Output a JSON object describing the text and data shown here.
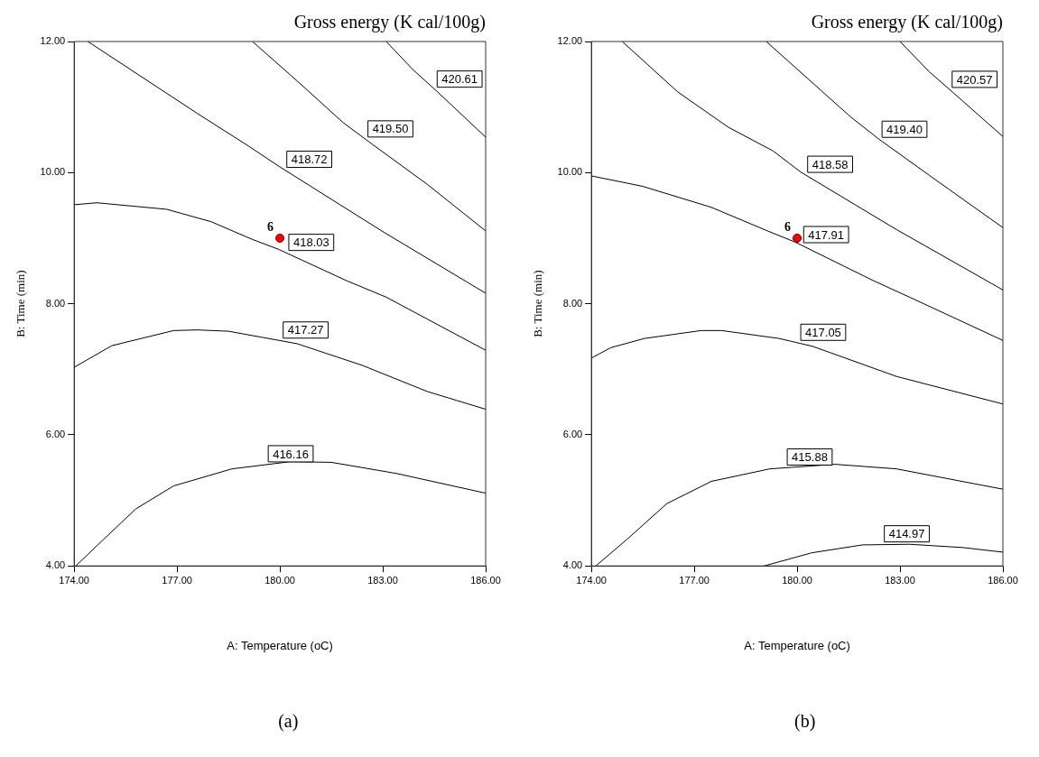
{
  "chart_data": [
    {
      "type": "line",
      "title": "Gross energy (K cal/100g)",
      "xlabel": "A: Temperature (oC)",
      "ylabel": "B: Time (min)",
      "xlim": [
        174,
        186
      ],
      "ylim": [
        4,
        12
      ],
      "xticks": [
        {
          "value": 174,
          "label": "174.00"
        },
        {
          "value": 177,
          "label": "177.00"
        },
        {
          "value": 180,
          "label": "180.00"
        },
        {
          "value": 183,
          "label": "183.00"
        },
        {
          "value": 186,
          "label": "186.00"
        }
      ],
      "yticks": [
        {
          "value": 4,
          "label": "4.00"
        },
        {
          "value": 6,
          "label": "6.00"
        },
        {
          "value": 8,
          "label": "8.00"
        },
        {
          "value": 10,
          "label": "10.00"
        },
        {
          "value": 12,
          "label": "12.00"
        }
      ],
      "series": [
        {
          "name": "420.61",
          "color": "#000000",
          "x": [
            183.1,
            183.9,
            184.6,
            186
          ],
          "values": [
            12,
            11.56,
            11.23,
            10.54
          ]
        },
        {
          "name": "419.50",
          "color": "#000000",
          "x": [
            179.2,
            180.5,
            181.85,
            182.7,
            184.3,
            186
          ],
          "values": [
            12,
            11.4,
            10.76,
            10.43,
            9.82,
            9.11
          ]
        },
        {
          "name": "418.72",
          "color": "#000000",
          "x": [
            174.4,
            176,
            177.6,
            179.1,
            179.96,
            183,
            186
          ],
          "values": [
            12,
            11.45,
            10.9,
            10.4,
            10.1,
            9.1,
            8.16
          ]
        },
        {
          "name": "418.03",
          "color": "#000000",
          "x": [
            174,
            174.66,
            176.7,
            178,
            179.2,
            179.96,
            181.95,
            183.1,
            186
          ],
          "values": [
            9.51,
            9.54,
            9.44,
            9.25,
            8.98,
            8.83,
            8.35,
            8.1,
            7.29
          ]
        },
        {
          "name": "417.27",
          "color": "#000000",
          "x": [
            174,
            175.1,
            176.9,
            177.6,
            178.5,
            180.5,
            182.4,
            184.3,
            186
          ],
          "values": [
            7.03,
            7.36,
            7.59,
            7.6,
            7.58,
            7.39,
            7.06,
            6.66,
            6.39
          ]
        },
        {
          "name": "416.16",
          "color": "#000000",
          "x": [
            174.05,
            174.85,
            175.8,
            176.9,
            178.6,
            180.3,
            181.5,
            183.4,
            186
          ],
          "values": [
            4,
            4.4,
            4.87,
            5.22,
            5.48,
            5.59,
            5.58,
            5.41,
            5.11
          ]
        },
        {
          "type": "scatter",
          "color": "#ff0000",
          "marker": "circle",
          "x": [
            180
          ],
          "values": [
            9
          ]
        }
      ],
      "annotations": [
        {
          "text": "6",
          "x": 180,
          "y": 9
        },
        "(a)"
      ]
    },
    {
      "type": "line",
      "title": "Gross energy (K cal/100g)",
      "xlabel": "A: Temperature (oC)",
      "ylabel": "B: Time (min)",
      "xlim": [
        174,
        186
      ],
      "ylim": [
        4,
        12
      ],
      "xticks": [
        {
          "value": 174,
          "label": "174.00"
        },
        {
          "value": 177,
          "label": "177.00"
        },
        {
          "value": 180,
          "label": "180.00"
        },
        {
          "value": 183,
          "label": "183.00"
        },
        {
          "value": 186,
          "label": "186.00"
        }
      ],
      "yticks": [
        {
          "value": 4,
          "label": "4.00"
        },
        {
          "value": 6,
          "label": "6.00"
        },
        {
          "value": 8,
          "label": "8.00"
        },
        {
          "value": 10,
          "label": "10.00"
        },
        {
          "value": 12,
          "label": "12.00"
        }
      ],
      "series": [
        {
          "name": "420.57",
          "color": "#000000",
          "x": [
            183,
            183.85,
            184.55,
            186
          ],
          "values": [
            12,
            11.54,
            11.22,
            10.55
          ]
        },
        {
          "name": "419.40",
          "color": "#000000",
          "x": [
            179.1,
            181.56,
            182.36,
            183.85,
            186
          ],
          "values": [
            12,
            10.85,
            10.52,
            9.96,
            9.16
          ]
        },
        {
          "name": "418.58",
          "color": "#000000",
          "x": [
            174.9,
            176.52,
            178,
            179.3,
            180.1,
            182.9,
            186
          ],
          "values": [
            12,
            11.23,
            10.69,
            10.33,
            10.01,
            9.13,
            8.21
          ]
        },
        {
          "name": "417.91",
          "color": "#000000",
          "x": [
            174,
            175.5,
            177.5,
            179.14,
            179.94,
            182.19,
            183.4,
            186
          ],
          "values": [
            9.95,
            9.79,
            9.47,
            9.11,
            8.94,
            8.36,
            8.07,
            7.44
          ]
        },
        {
          "name": "417.05",
          "color": "#000000",
          "x": [
            174,
            174.57,
            175.55,
            177.2,
            177.8,
            179.47,
            180.45,
            182.9,
            186
          ],
          "values": [
            7.17,
            7.33,
            7.47,
            7.59,
            7.59,
            7.47,
            7.35,
            6.89,
            6.47
          ]
        },
        {
          "name": "415.88",
          "color": "#000000",
          "x": [
            174.13,
            175.05,
            176.2,
            177.5,
            179.2,
            181.1,
            182.9,
            186
          ],
          "values": [
            4,
            4.41,
            4.95,
            5.29,
            5.48,
            5.55,
            5.48,
            5.17
          ]
        },
        {
          "name": "414.97",
          "color": "#000000",
          "x": [
            179.04,
            180.43,
            181.9,
            183.27,
            184.83,
            186
          ],
          "values": [
            4,
            4.2,
            4.32,
            4.33,
            4.28,
            4.21
          ]
        },
        {
          "type": "scatter",
          "color": "#ff0000",
          "marker": "circle",
          "x": [
            180
          ],
          "values": [
            9
          ]
        }
      ],
      "annotations": [
        {
          "text": "6",
          "x": 180,
          "y": 9
        },
        "(b)"
      ]
    }
  ]
}
